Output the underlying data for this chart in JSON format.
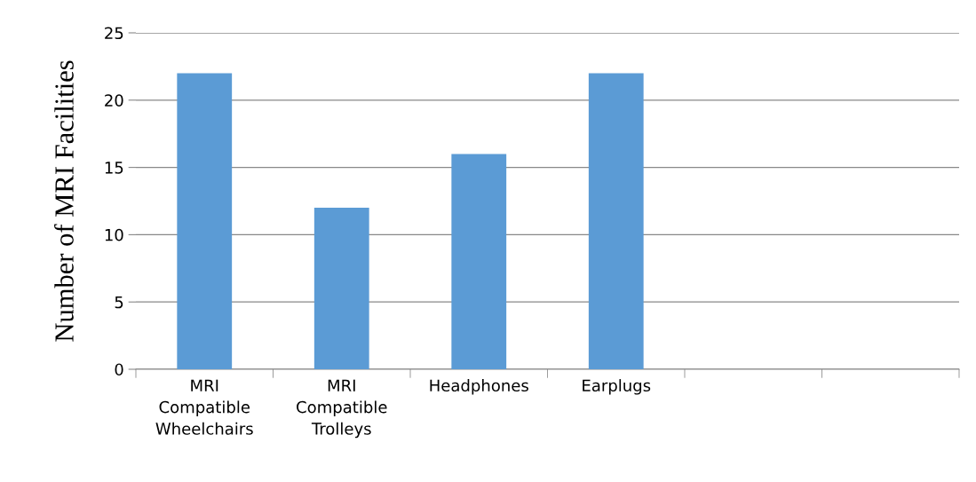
{
  "chart_data": {
    "type": "bar",
    "categories": [
      "MRI\nCompatible\nWheelchairs",
      "MRI\nCompatible\nTrolleys",
      "Headphones",
      "Earplugs",
      null,
      null
    ],
    "values": [
      22,
      12,
      16,
      22,
      null,
      null
    ],
    "color": "#5b9bd5",
    "ylabel": "Number of MRI Facilities",
    "ylim": [
      0,
      25
    ],
    "yticks": [
      0,
      5,
      10,
      15,
      20,
      25
    ],
    "grid": "y",
    "legend": false
  }
}
